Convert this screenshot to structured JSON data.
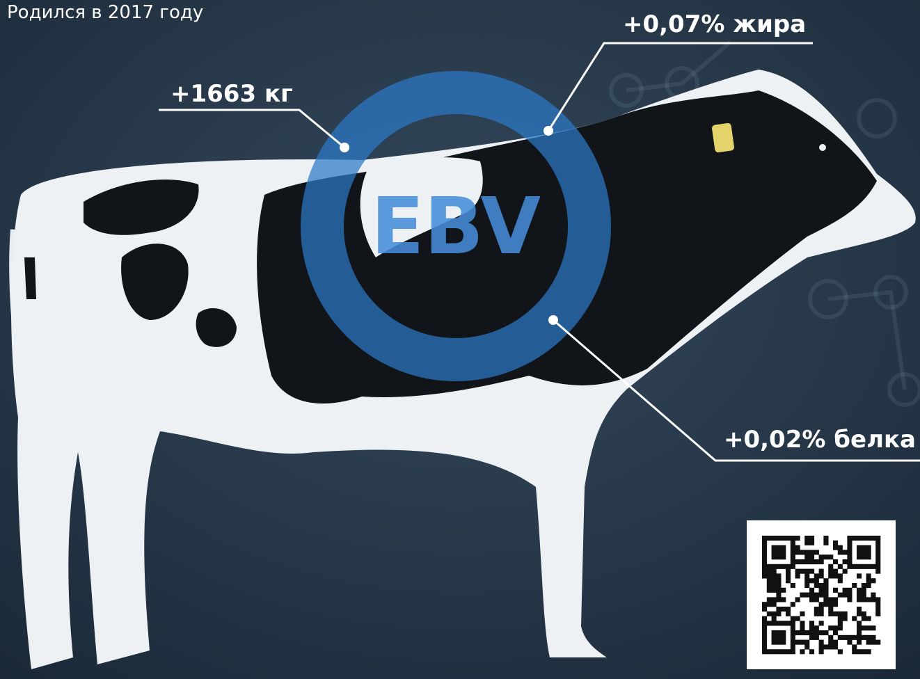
{
  "header": {
    "subtitle": "Родился в 2017 году"
  },
  "badge": {
    "label": "EBV"
  },
  "callouts": [
    {
      "label": "+1663 кг"
    },
    {
      "label": "+0,07% жира"
    },
    {
      "label": "+0,02% белка"
    }
  ]
}
